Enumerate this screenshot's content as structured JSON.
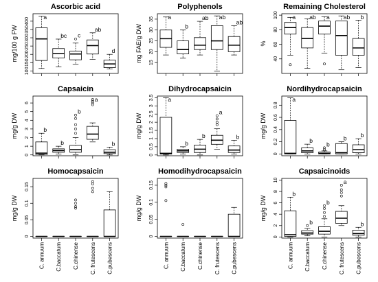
{
  "x_categories": [
    "C. annuum",
    "C.baccatum",
    "C.chinense",
    "C. frutescens",
    "C.pubescens"
  ],
  "chart_data": [
    {
      "type": "boxplot",
      "title": "Ascorbic acid",
      "ylabel": "mg/100 g FW",
      "ylim": [
        85,
        445
      ],
      "yticks": [
        100,
        150,
        200,
        250,
        300,
        350,
        400
      ],
      "boxes": [
        {
          "category": "C. annuum",
          "min": 115,
          "q1": 163,
          "median": 293,
          "q3": 360,
          "max": 430,
          "outliers": [],
          "letter": "a"
        },
        {
          "category": "C.baccatum",
          "min": 125,
          "q1": 178,
          "median": 205,
          "q3": 235,
          "max": 292,
          "outliers": [],
          "letter": "bc"
        },
        {
          "category": "C.chinense",
          "min": 140,
          "q1": 167,
          "median": 202,
          "q3": 220,
          "max": 268,
          "outliers": [
            293
          ],
          "letter": "c"
        },
        {
          "category": "C. frutescens",
          "min": 170,
          "q1": 202,
          "median": 253,
          "q3": 287,
          "max": 330,
          "outliers": [],
          "letter": "ab"
        },
        {
          "category": "C.pubescens",
          "min": 112,
          "q1": 120,
          "median": 142,
          "q3": 165,
          "max": 200,
          "outliers": [],
          "letter": "d"
        }
      ]
    },
    {
      "type": "boxplot",
      "title": "Polyphenols",
      "ylabel": "mg FAE/g DW",
      "ylim": [
        10,
        37.5
      ],
      "yticks": [
        15,
        20,
        25,
        30,
        35
      ],
      "boxes": [
        {
          "category": "C. annuum",
          "min": 18.5,
          "q1": 22,
          "median": 26,
          "q3": 30,
          "max": 36,
          "outliers": [],
          "letter": "a"
        },
        {
          "category": "C.baccatum",
          "min": 17,
          "q1": 19,
          "median": 21,
          "q3": 25,
          "max": 30,
          "outliers": [],
          "letter": "b"
        },
        {
          "category": "C.chinense",
          "min": 18.5,
          "q1": 21,
          "median": 23,
          "q3": 26.5,
          "max": 34,
          "outliers": [],
          "letter": "ab"
        },
        {
          "category": "C. frutescens",
          "min": 11,
          "q1": 21,
          "median": 25,
          "q3": 32,
          "max": 36.5,
          "outliers": [],
          "letter": "ab"
        },
        {
          "category": "C.pubescens",
          "min": 18.5,
          "q1": 20,
          "median": 23,
          "q3": 27,
          "max": 32,
          "outliers": [],
          "letter": "ab"
        }
      ]
    },
    {
      "type": "boxplot",
      "title": "Remaining Cholesterol",
      "ylabel": "%",
      "ylim": [
        20,
        102
      ],
      "yticks": [
        40,
        60,
        80,
        100
      ],
      "boxes": [
        {
          "category": "C. annuum",
          "min": 45,
          "q1": 74,
          "median": 83,
          "q3": 90,
          "max": 97,
          "outliers": [
            32
          ],
          "letter": "a"
        },
        {
          "category": "C.baccatum",
          "min": 27,
          "q1": 55,
          "median": 68,
          "q3": 83,
          "max": 95,
          "outliers": [],
          "letter": "ab"
        },
        {
          "category": "C.chinense",
          "min": 48,
          "q1": 74,
          "median": 85,
          "q3": 92,
          "max": 98,
          "outliers": [
            33
          ],
          "letter": "a"
        },
        {
          "category": "C. frutescens",
          "min": 25,
          "q1": 45,
          "median": 72,
          "q3": 92,
          "max": 99,
          "outliers": [],
          "letter": "ab"
        },
        {
          "category": "C.pubescens",
          "min": 28,
          "q1": 45,
          "median": 55,
          "q3": 68,
          "max": 93,
          "outliers": [],
          "letter": "b"
        }
      ]
    },
    {
      "type": "boxplot",
      "title": "Capsaicin",
      "ylabel": "mg/g DW",
      "ylim": [
        -0.1,
        6.8
      ],
      "yticks": [
        0,
        1,
        2,
        3,
        4,
        5,
        6
      ],
      "boxes": [
        {
          "category": "C. annuum",
          "min": 0,
          "q1": 0.05,
          "median": 0.2,
          "q3": 1.5,
          "max": 2.5,
          "outliers": [],
          "letter": "b"
        },
        {
          "category": "C.baccatum",
          "min": 0.1,
          "q1": 0.3,
          "median": 0.5,
          "q3": 0.7,
          "max": 1.0,
          "outliers": [],
          "letter": "b"
        },
        {
          "category": "C.chinense",
          "min": 0,
          "q1": 0.3,
          "median": 0.6,
          "q3": 1.1,
          "max": 2.0,
          "outliers": [
            2.5,
            3.0,
            3.5,
            4.2,
            4.6
          ],
          "letter": "b"
        },
        {
          "category": "C. frutescens",
          "min": 1.5,
          "q1": 1.8,
          "median": 2.4,
          "q3": 3.3,
          "max": 3.7,
          "outliers": [
            5.8,
            6.0,
            6.2,
            6.4
          ],
          "letter": "a"
        },
        {
          "category": "C.pubescens",
          "min": 0,
          "q1": 0.15,
          "median": 0.3,
          "q3": 0.6,
          "max": 0.9,
          "outliers": [],
          "letter": "b"
        }
      ]
    },
    {
      "type": "boxplot",
      "title": "Dihydrocapsaicin",
      "ylabel": "mg/g DW",
      "ylim": [
        -0.05,
        3.6
      ],
      "yticks": [
        0,
        0.5,
        1.0,
        1.5,
        2.0,
        2.5,
        3.0,
        3.5
      ],
      "boxes": [
        {
          "category": "C. annuum",
          "min": 0,
          "q1": 0.05,
          "median": 0.1,
          "q3": 2.3,
          "max": 3.5,
          "outliers": [],
          "letter": "a"
        },
        {
          "category": "C.baccatum",
          "min": 0.05,
          "q1": 0.15,
          "median": 0.25,
          "q3": 0.35,
          "max": 0.5,
          "outliers": [],
          "letter": "b"
        },
        {
          "category": "C.chinense",
          "min": 0,
          "q1": 0.15,
          "median": 0.35,
          "q3": 0.6,
          "max": 0.95,
          "outliers": [],
          "letter": "b"
        },
        {
          "category": "C. frutescens",
          "min": 0.35,
          "q1": 0.65,
          "median": 0.9,
          "q3": 1.2,
          "max": 1.6,
          "outliers": [
            1.85,
            2.0,
            2.2,
            2.4
          ],
          "letter": "a"
        },
        {
          "category": "C.pubescens",
          "min": 0.05,
          "q1": 0.15,
          "median": 0.3,
          "q3": 0.55,
          "max": 0.9,
          "outliers": [],
          "letter": "b"
        }
      ]
    },
    {
      "type": "boxplot",
      "title": "Nordihydrocapsaicin",
      "ylabel": "mg/g DW",
      "ylim": [
        -0.03,
        0.95
      ],
      "yticks": [
        0,
        0.2,
        0.4,
        0.6,
        0.8
      ],
      "boxes": [
        {
          "category": "C. annuum",
          "min": 0,
          "q1": 0,
          "median": 0.01,
          "q3": 0.55,
          "max": 0.92,
          "outliers": [],
          "letter": "a"
        },
        {
          "category": "C.baccatum",
          "min": 0,
          "q1": 0.02,
          "median": 0.05,
          "q3": 0.1,
          "max": 0.16,
          "outliers": [],
          "letter": "b"
        },
        {
          "category": "C.chinense",
          "min": 0,
          "q1": 0,
          "median": 0.01,
          "q3": 0.03,
          "max": 0.05,
          "outliers": [
            0.07,
            0.1
          ],
          "letter": "b"
        },
        {
          "category": "C. frutescens",
          "min": 0,
          "q1": 0,
          "median": 0.02,
          "q3": 0.17,
          "max": 0.2,
          "outliers": [],
          "letter": "b"
        },
        {
          "category": "C.pubescens",
          "min": 0,
          "q1": 0.02,
          "median": 0.07,
          "q3": 0.15,
          "max": 0.25,
          "outliers": [],
          "letter": "b"
        }
      ]
    },
    {
      "type": "boxplot",
      "title": "Homocapsaicin",
      "ylabel": "mg/g DW",
      "ylim": [
        -0.005,
        0.175
      ],
      "yticks": [
        0,
        0.05,
        0.1,
        0.15
      ],
      "boxes": [
        {
          "category": "C. annuum",
          "min": 0,
          "q1": 0,
          "median": 0,
          "q3": 0,
          "max": 0,
          "outliers": [],
          "letter": ""
        },
        {
          "category": "C.baccatum",
          "min": 0,
          "q1": 0,
          "median": 0,
          "q3": 0,
          "max": 0,
          "outliers": [],
          "letter": ""
        },
        {
          "category": "C.chinense",
          "min": 0,
          "q1": 0,
          "median": 0,
          "q3": 0,
          "max": 0,
          "outliers": [
            0.085,
            0.09,
            0.1,
            0.11
          ],
          "letter": ""
        },
        {
          "category": "C. frutescens",
          "min": 0,
          "q1": 0,
          "median": 0,
          "q3": 0,
          "max": 0,
          "outliers": [
            0.135,
            0.145,
            0.158,
            0.165
          ],
          "letter": ""
        },
        {
          "category": "C.pubescens",
          "min": 0,
          "q1": 0,
          "median": 0,
          "q3": 0.08,
          "max": 0.135,
          "outliers": [],
          "letter": ""
        }
      ]
    },
    {
      "type": "boxplot",
      "title": "Homodihydrocapsaicin",
      "ylabel": "mg/g DW",
      "ylim": [
        -0.005,
        0.17
      ],
      "yticks": [
        0,
        0.05,
        0.1,
        0.15
      ],
      "boxes": [
        {
          "category": "C. annuum",
          "min": 0,
          "q1": 0,
          "median": 0,
          "q3": 0,
          "max": 0,
          "outliers": [
            0.105,
            0.145,
            0.15,
            0.155
          ],
          "letter": ""
        },
        {
          "category": "C.baccatum",
          "min": 0,
          "q1": 0,
          "median": 0,
          "q3": 0,
          "max": 0,
          "outliers": [
            0.035
          ],
          "letter": ""
        },
        {
          "category": "C.chinense",
          "min": 0,
          "q1": 0,
          "median": 0,
          "q3": 0,
          "max": 0,
          "outliers": [],
          "letter": ""
        },
        {
          "category": "C. frutescens",
          "min": 0,
          "q1": 0,
          "median": 0,
          "q3": 0,
          "max": 0,
          "outliers": [],
          "letter": ""
        },
        {
          "category": "C.pubescens",
          "min": 0,
          "q1": 0,
          "median": 0,
          "q3": 0.065,
          "max": 0.085,
          "outliers": [],
          "letter": ""
        }
      ]
    },
    {
      "type": "boxplot",
      "title": "Capsaicinoids",
      "ylabel": "mg/g DW",
      "ylim": [
        -0.2,
        10.3
      ],
      "yticks": [
        0,
        2,
        4,
        6,
        8,
        10
      ],
      "boxes": [
        {
          "category": "C. annuum",
          "min": 0,
          "q1": 0.1,
          "median": 0.4,
          "q3": 4.6,
          "max": 7.0,
          "outliers": [],
          "letter": "b"
        },
        {
          "category": "C.baccatum",
          "min": 0.2,
          "q1": 0.5,
          "median": 0.7,
          "q3": 1.1,
          "max": 1.5,
          "outliers": [
            2.0
          ],
          "letter": "b"
        },
        {
          "category": "C.chinense",
          "min": 0,
          "q1": 0.5,
          "median": 1.0,
          "q3": 1.8,
          "max": 3.2,
          "outliers": [
            3.6,
            4.3,
            5.0,
            5.5
          ],
          "letter": "b"
        },
        {
          "category": "C. frutescens",
          "min": 2.0,
          "q1": 2.4,
          "median": 3.3,
          "q3": 4.5,
          "max": 5.5,
          "outliers": [
            7.2,
            7.8,
            8.3,
            9.1
          ],
          "letter": "a"
        },
        {
          "category": "C.pubescens",
          "min": 0,
          "q1": 0.3,
          "median": 0.6,
          "q3": 1.2,
          "max": 1.7,
          "outliers": [],
          "letter": "b"
        }
      ]
    }
  ]
}
